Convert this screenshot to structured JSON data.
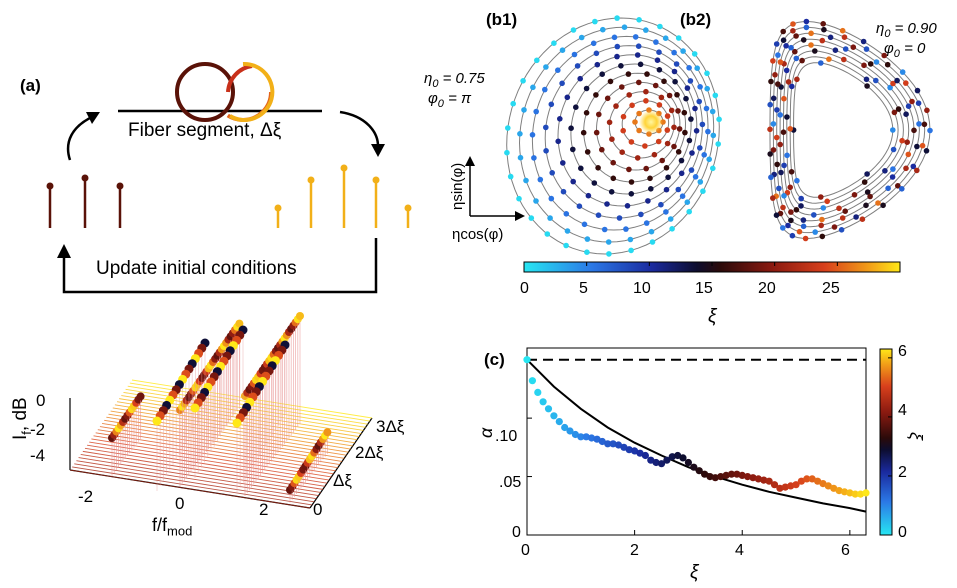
{
  "panel_a": {
    "label": "(a)",
    "segment_label": "Fiber segment, Δξ",
    "update_label": "Update initial conditions",
    "waterfall": {
      "ylabel_main": "I",
      "ylabel_sub": "f",
      "ylabel_unit": ", dB",
      "xlabel_main": "f/f",
      "xlabel_sub": "mod",
      "yticks": [
        "0",
        "-2",
        "-4"
      ],
      "xticks": [
        "-2",
        "0",
        "2"
      ],
      "depth_ticks": [
        "0",
        "Δξ",
        "2Δξ",
        "3Δξ"
      ]
    }
  },
  "panel_b1": {
    "label": "(b1)",
    "eta": "η",
    "eta_sub": "0",
    "eta_value": " = 0.75",
    "phi": "φ",
    "phi_sub": "0",
    "phi_value": " = π",
    "axis_y": "ηsin(φ)",
    "axis_x": "ηcos(φ)"
  },
  "panel_b2": {
    "label": "(b2)",
    "eta": "η",
    "eta_sub": "0",
    "eta_value": " = 0.90",
    "phi": "φ",
    "phi_sub": "0",
    "phi_value": " = 0"
  },
  "colorbar_b": {
    "ticks": [
      "0",
      "5",
      "10",
      "15",
      "20",
      "25"
    ],
    "label": "ξ"
  },
  "chart_data": {
    "type": "scatter",
    "label": "(c)",
    "xlabel": "ξ",
    "ylabel": "α",
    "xlim": [
      0,
      6.3
    ],
    "ylim": [
      0,
      0.16
    ],
    "xticks": [
      "0",
      "2",
      "4",
      "6"
    ],
    "yticks": [
      "0",
      ".05",
      ".10"
    ],
    "dashed_level": 0.15,
    "colorbar": {
      "ticks": [
        "0",
        "2",
        "4",
        "6"
      ],
      "label": "ξ",
      "range": [
        0,
        6.3
      ]
    },
    "curve": {
      "x": [
        0,
        0.5,
        1,
        1.5,
        2,
        2.5,
        3,
        3.5,
        4,
        4.5,
        5,
        5.5,
        6,
        6.3
      ],
      "y": [
        0.15,
        0.127,
        0.108,
        0.092,
        0.079,
        0.068,
        0.058,
        0.05,
        0.043,
        0.037,
        0.032,
        0.027,
        0.023,
        0.02
      ]
    },
    "series": [
      {
        "x": [
          0,
          0.1,
          0.2,
          0.3,
          0.4,
          0.5,
          0.6,
          0.7,
          0.8,
          0.9,
          1.0,
          1.1,
          1.2,
          1.3,
          1.4,
          1.5,
          1.6,
          1.7,
          1.8,
          1.9,
          2.0,
          2.1,
          2.2,
          2.3,
          2.4,
          2.5,
          2.6,
          2.7,
          2.8,
          2.9,
          3.0,
          3.1,
          3.2,
          3.3,
          3.4,
          3.5,
          3.6,
          3.7,
          3.8,
          3.9,
          4.0,
          4.1,
          4.2,
          4.3,
          4.4,
          4.5,
          4.6,
          4.7,
          4.8,
          4.9,
          5.0,
          5.1,
          5.2,
          5.3,
          5.4,
          5.5,
          5.6,
          5.7,
          5.8,
          5.9,
          6.0,
          6.1,
          6.2,
          6.3
        ],
        "y": [
          0.15,
          0.132,
          0.122,
          0.114,
          0.108,
          0.102,
          0.097,
          0.092,
          0.089,
          0.086,
          0.084,
          0.084,
          0.083,
          0.082,
          0.08,
          0.078,
          0.078,
          0.077,
          0.075,
          0.073,
          0.072,
          0.07,
          0.068,
          0.064,
          0.062,
          0.061,
          0.064,
          0.067,
          0.068,
          0.066,
          0.062,
          0.058,
          0.055,
          0.052,
          0.05,
          0.049,
          0.05,
          0.051,
          0.052,
          0.052,
          0.051,
          0.05,
          0.049,
          0.048,
          0.047,
          0.046,
          0.043,
          0.04,
          0.041,
          0.042,
          0.043,
          0.046,
          0.048,
          0.048,
          0.046,
          0.044,
          0.042,
          0.04,
          0.038,
          0.037,
          0.036,
          0.035,
          0.035,
          0.036
        ]
      }
    ]
  },
  "colors": {
    "ring_dark": "#5a1208",
    "ring_mid": "#d8401c",
    "ring_light": "#f2a018",
    "axis": "#000000",
    "grid_curve": "#7f7f7f"
  }
}
